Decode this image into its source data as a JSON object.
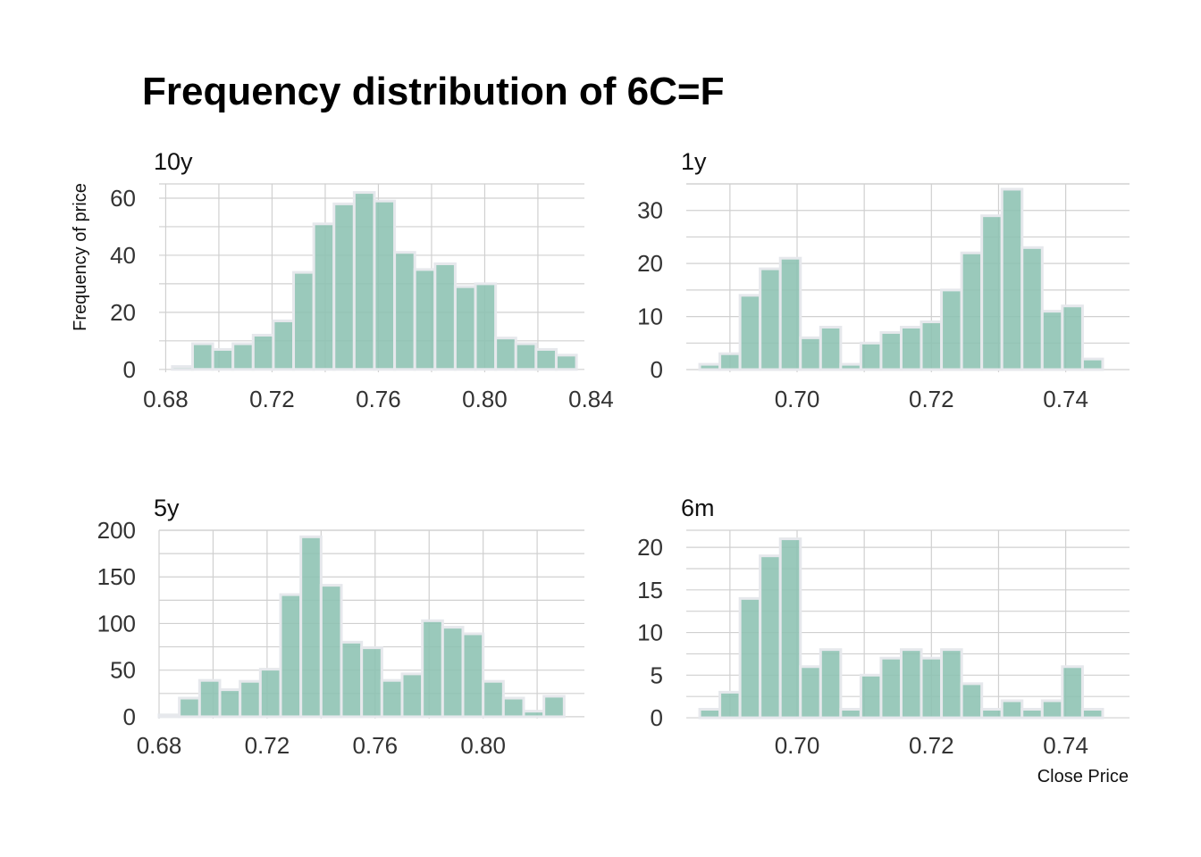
{
  "title": "Frequency distribution of 6C=F",
  "ylabel": "Frequency of price",
  "xlabel": "Close Price",
  "colors": {
    "bar_fill": "#8cc2b2",
    "bar_edge": "#e6e8ec",
    "grid": "#d0d0d0"
  },
  "chart_data": [
    {
      "type": "bar",
      "panel": "10y",
      "bin_start": 0.6825,
      "bin_width": 0.0076,
      "values": [
        1,
        9,
        7,
        9,
        12,
        17,
        34,
        51,
        58,
        62,
        59,
        41,
        35,
        37,
        29,
        30,
        11,
        9,
        7,
        5
      ],
      "xlim": [
        0.6775,
        0.8375
      ],
      "ylim": [
        -1,
        65
      ],
      "xticks": [
        "0.68",
        "0.72",
        "0.76",
        "0.80",
        "0.84"
      ],
      "yticks": [
        "0",
        "20",
        "40",
        "60"
      ],
      "grid": true
    },
    {
      "type": "bar",
      "panel": "1y",
      "bin_start": 0.6855,
      "bin_width": 0.003,
      "values": [
        1,
        3,
        14,
        19,
        21,
        6,
        8,
        1,
        5,
        7,
        8,
        9,
        15,
        22,
        29,
        34,
        23,
        11,
        12,
        2
      ],
      "xlim": [
        0.6835,
        0.7495
      ],
      "ylim": [
        -0.5,
        35
      ],
      "xticks": [
        "0.70",
        "0.72",
        "0.74"
      ],
      "yticks": [
        "0",
        "10",
        "20",
        "30"
      ],
      "grid": true
    },
    {
      "type": "bar",
      "panel": "5y",
      "bin_start": 0.68,
      "bin_width": 0.0075,
      "values": [
        2,
        20,
        39,
        29,
        38,
        51,
        131,
        193,
        141,
        80,
        74,
        39,
        46,
        103,
        96,
        89,
        38,
        20,
        6,
        22
      ],
      "xlim": [
        0.68,
        0.8375
      ],
      "ylim": [
        -2,
        200
      ],
      "xticks": [
        "0.68",
        "0.72",
        "0.76",
        "0.80"
      ],
      "yticks": [
        "0",
        "50",
        "100",
        "150",
        "200"
      ],
      "grid": true
    },
    {
      "type": "bar",
      "panel": "6m",
      "bin_start": 0.6855,
      "bin_width": 0.003,
      "values": [
        1,
        3,
        14,
        19,
        21,
        6,
        8,
        1,
        5,
        7,
        8,
        7,
        8,
        4,
        1,
        2,
        1,
        2,
        6,
        1
      ],
      "xlim": [
        0.6835,
        0.7495
      ],
      "ylim": [
        -0.1,
        22
      ],
      "xticks": [
        "0.70",
        "0.72",
        "0.74"
      ],
      "yticks": [
        "0",
        "5",
        "10",
        "15",
        "20"
      ],
      "grid": true
    }
  ]
}
